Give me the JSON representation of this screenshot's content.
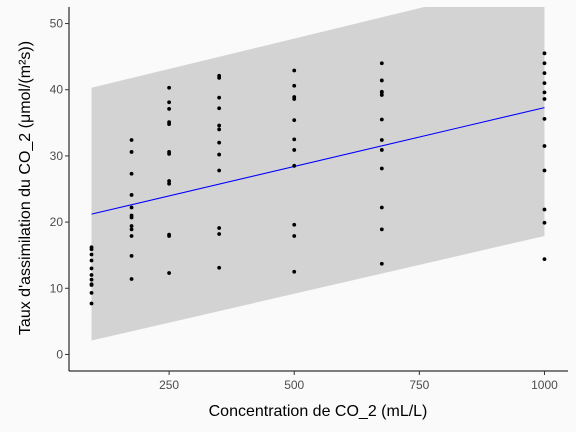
{
  "chart_data": {
    "type": "scatter",
    "title": "",
    "xlabel": "Concentration de CO_2 (mL/L)",
    "ylabel": "Taux d'assimilation du CO_2 (μmol/(m²s))",
    "xlim": [
      50,
      1047
    ],
    "ylim": [
      -2.5,
      52.5
    ],
    "x_ticks": [
      250,
      500,
      750,
      1000
    ],
    "y_ticks": [
      0,
      10,
      20,
      30,
      40,
      50
    ],
    "grid": false,
    "colors": {
      "background": "#fafafa",
      "band": "#d3d3d3",
      "points": "#000000",
      "fit_line": "#0000ff",
      "axis": "#000000"
    },
    "points": [
      {
        "x": 95,
        "y": 7.7
      },
      {
        "x": 95,
        "y": 9.3
      },
      {
        "x": 95,
        "y": 10.5
      },
      {
        "x": 95,
        "y": 10.6
      },
      {
        "x": 95,
        "y": 11.3
      },
      {
        "x": 95,
        "y": 12.0
      },
      {
        "x": 95,
        "y": 13.0
      },
      {
        "x": 95,
        "y": 14.2
      },
      {
        "x": 95,
        "y": 15.1
      },
      {
        "x": 95,
        "y": 15.9
      },
      {
        "x": 95,
        "y": 16.2
      },
      {
        "x": 175,
        "y": 11.4
      },
      {
        "x": 175,
        "y": 14.9
      },
      {
        "x": 175,
        "y": 17.9
      },
      {
        "x": 175,
        "y": 18.9
      },
      {
        "x": 175,
        "y": 19.4
      },
      {
        "x": 175,
        "y": 20.7
      },
      {
        "x": 175,
        "y": 21.0
      },
      {
        "x": 175,
        "y": 22.2
      },
      {
        "x": 175,
        "y": 24.1
      },
      {
        "x": 175,
        "y": 27.3
      },
      {
        "x": 175,
        "y": 30.6
      },
      {
        "x": 175,
        "y": 32.4
      },
      {
        "x": 250,
        "y": 12.3
      },
      {
        "x": 250,
        "y": 17.9
      },
      {
        "x": 250,
        "y": 18.1
      },
      {
        "x": 250,
        "y": 25.8
      },
      {
        "x": 250,
        "y": 26.2
      },
      {
        "x": 250,
        "y": 30.3
      },
      {
        "x": 250,
        "y": 30.6
      },
      {
        "x": 250,
        "y": 34.8
      },
      {
        "x": 250,
        "y": 35.1
      },
      {
        "x": 250,
        "y": 37.1
      },
      {
        "x": 250,
        "y": 38.1
      },
      {
        "x": 250,
        "y": 40.3
      },
      {
        "x": 350,
        "y": 13.1
      },
      {
        "x": 350,
        "y": 18.2
      },
      {
        "x": 350,
        "y": 19.1
      },
      {
        "x": 350,
        "y": 27.8
      },
      {
        "x": 350,
        "y": 30.2
      },
      {
        "x": 350,
        "y": 32.0
      },
      {
        "x": 350,
        "y": 34.0
      },
      {
        "x": 350,
        "y": 34.6
      },
      {
        "x": 350,
        "y": 37.2
      },
      {
        "x": 350,
        "y": 38.8
      },
      {
        "x": 350,
        "y": 41.8
      },
      {
        "x": 350,
        "y": 42.1
      },
      {
        "x": 500,
        "y": 12.5
      },
      {
        "x": 500,
        "y": 17.9
      },
      {
        "x": 500,
        "y": 19.6
      },
      {
        "x": 500,
        "y": 28.5
      },
      {
        "x": 500,
        "y": 30.9
      },
      {
        "x": 500,
        "y": 32.5
      },
      {
        "x": 500,
        "y": 35.4
      },
      {
        "x": 500,
        "y": 38.6
      },
      {
        "x": 500,
        "y": 38.9
      },
      {
        "x": 500,
        "y": 40.6
      },
      {
        "x": 500,
        "y": 42.9
      },
      {
        "x": 675,
        "y": 13.7
      },
      {
        "x": 675,
        "y": 18.9
      },
      {
        "x": 675,
        "y": 22.2
      },
      {
        "x": 675,
        "y": 28.1
      },
      {
        "x": 675,
        "y": 30.9
      },
      {
        "x": 675,
        "y": 32.4
      },
      {
        "x": 675,
        "y": 35.5
      },
      {
        "x": 675,
        "y": 39.2
      },
      {
        "x": 675,
        "y": 39.6
      },
      {
        "x": 675,
        "y": 39.7
      },
      {
        "x": 675,
        "y": 41.4
      },
      {
        "x": 675,
        "y": 44.0
      },
      {
        "x": 1000,
        "y": 14.4
      },
      {
        "x": 1000,
        "y": 19.9
      },
      {
        "x": 1000,
        "y": 21.9
      },
      {
        "x": 1000,
        "y": 27.8
      },
      {
        "x": 1000,
        "y": 31.5
      },
      {
        "x": 1000,
        "y": 35.6
      },
      {
        "x": 1000,
        "y": 38.6
      },
      {
        "x": 1000,
        "y": 39.6
      },
      {
        "x": 1000,
        "y": 41.0
      },
      {
        "x": 1000,
        "y": 42.5
      },
      {
        "x": 1000,
        "y": 44.0
      },
      {
        "x": 1000,
        "y": 45.5
      }
    ],
    "fit_line": {
      "x": [
        95,
        1000
      ],
      "y": [
        21.2,
        37.3
      ]
    },
    "prediction_band": {
      "x": [
        95,
        1000
      ],
      "lower": [
        2.1,
        17.9
      ],
      "upper": [
        40.3,
        56.9
      ]
    }
  }
}
